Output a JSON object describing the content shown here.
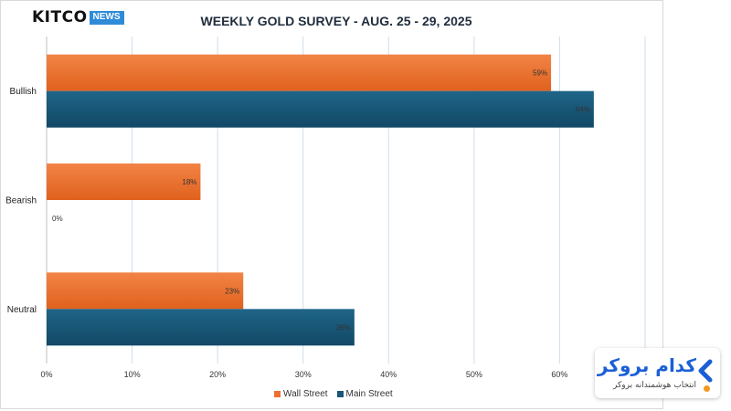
{
  "brand": {
    "name": "KITCO",
    "badge": "NEWS"
  },
  "chart_data": {
    "type": "bar",
    "orientation": "horizontal",
    "title": "WEEKLY GOLD SURVEY - AUG. 25 - 29, 2025",
    "categories": [
      "Bullish",
      "Bearish",
      "Neutral"
    ],
    "series": [
      {
        "name": "Wall Street",
        "color": "#ed7030",
        "values": [
          59,
          18,
          23
        ],
        "labels": [
          "59%",
          "18%",
          "23%"
        ]
      },
      {
        "name": "Main Street",
        "color": "#19567a",
        "values": [
          64,
          0,
          36
        ],
        "labels": [
          "64%",
          "0%",
          "36%"
        ]
      }
    ],
    "xlim": [
      0,
      70
    ],
    "xticks": [
      0,
      10,
      20,
      30,
      40,
      50,
      60,
      70
    ],
    "xtick_labels": [
      "0%",
      "10%",
      "20%",
      "30%",
      "40%",
      "50%",
      "60%",
      ""
    ],
    "grid": true,
    "legend_position": "bottom"
  },
  "watermark": {
    "title": "کدام بروکر",
    "subtitle": "انتخاب هوشمندانه بروکر",
    "accent_color": "#1b5fd6",
    "dot_color": "#f29a1f"
  }
}
